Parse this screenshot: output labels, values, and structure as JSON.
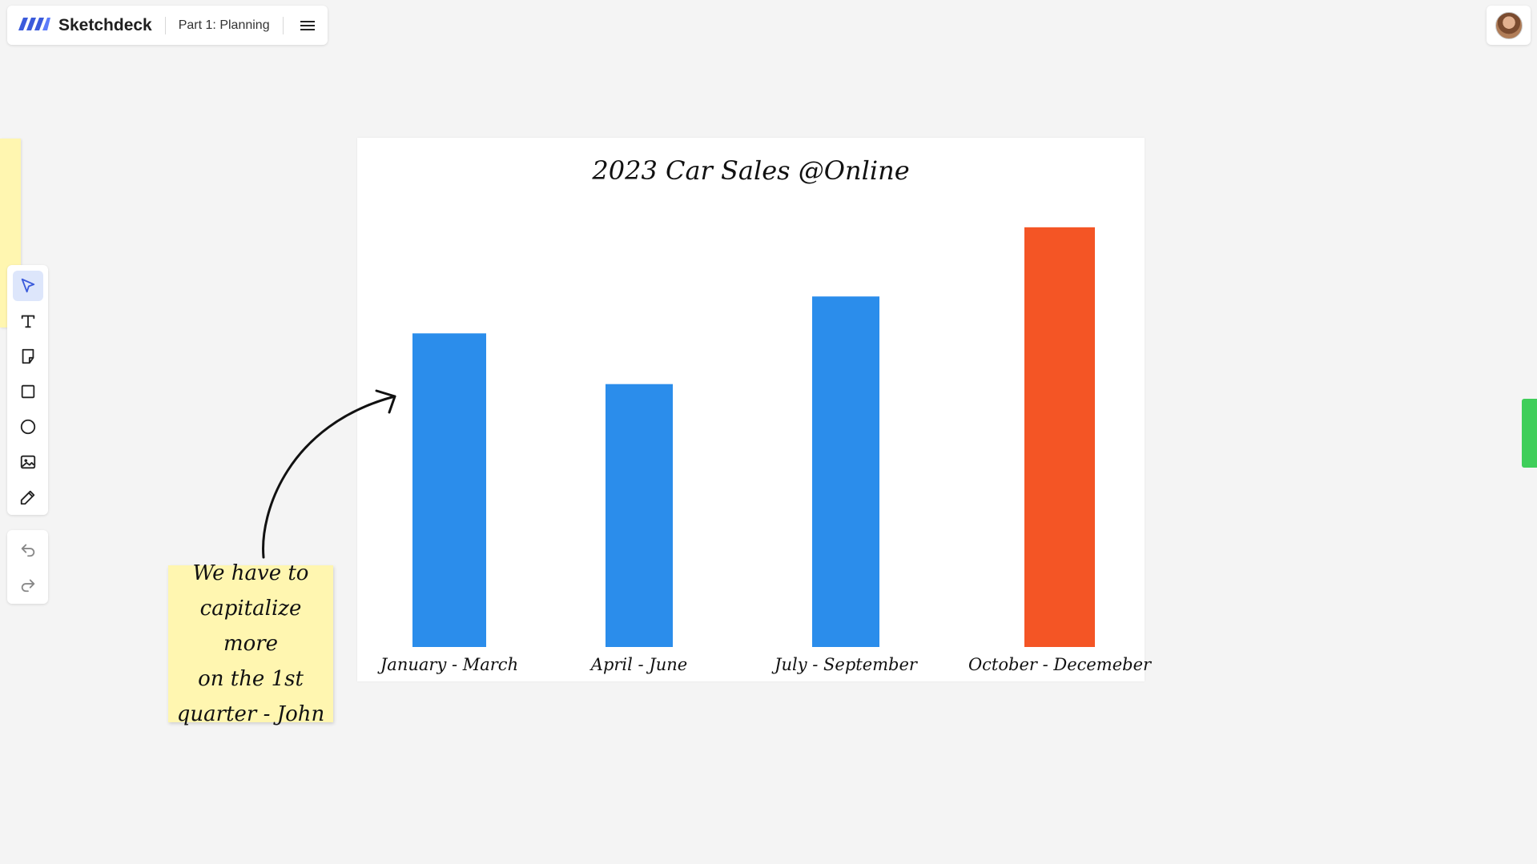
{
  "app": {
    "name": "Sketchdeck",
    "document_title": "Part 1: Planning"
  },
  "colors": {
    "brand": "#3b5bdb",
    "bar_default": "#2b8deb",
    "bar_highlight": "#f45525",
    "sticky": "#fff6b0",
    "green_tab": "#3fce5a"
  },
  "toolbar": {
    "tools": [
      {
        "name": "select",
        "icon": "cursor-icon",
        "active": true
      },
      {
        "name": "text",
        "icon": "text-icon"
      },
      {
        "name": "sticky-note",
        "icon": "note-icon"
      },
      {
        "name": "rectangle",
        "icon": "square-icon"
      },
      {
        "name": "ellipse",
        "icon": "circle-icon"
      },
      {
        "name": "image",
        "icon": "image-icon"
      },
      {
        "name": "pen",
        "icon": "pencil-icon"
      }
    ],
    "history": [
      {
        "name": "undo",
        "icon": "undo-icon"
      },
      {
        "name": "redo",
        "icon": "redo-icon"
      }
    ]
  },
  "sticky_note": {
    "lines": [
      "We have to",
      "capitalize more",
      "on the 1st",
      "quarter - John"
    ]
  },
  "chart_data": {
    "type": "bar",
    "title": "2023 Car Sales @Online",
    "categories": [
      "January - March",
      "April - June",
      "July - September",
      "October - Decemeber"
    ],
    "values": [
      68,
      57,
      76,
      91
    ],
    "highlight_index": 3,
    "ylim": [
      0,
      100
    ],
    "xlabel": "",
    "ylabel": "",
    "grid": false,
    "legend": "none"
  }
}
